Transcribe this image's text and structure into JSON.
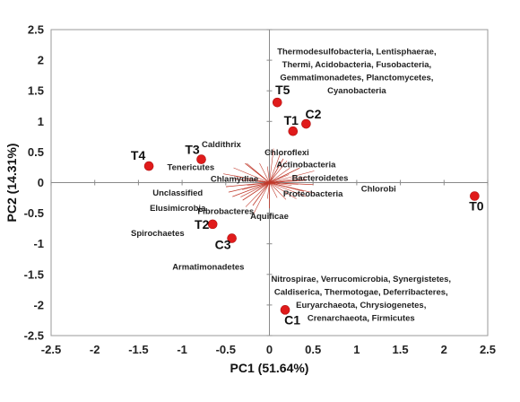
{
  "chart_data": {
    "type": "scatter",
    "title": "",
    "xlabel": "PC1 (51.64%)",
    "ylabel": "PC2 (14.31%)",
    "xlim": [
      -2.5,
      2.5
    ],
    "ylim": [
      -2.5,
      2.5
    ],
    "xticks": [
      "-2.5",
      "-2",
      "-1.5",
      "-1",
      "-0.5",
      "0",
      "0.5",
      "1",
      "1.5",
      "2",
      "2.5"
    ],
    "yticks": [
      "2.5",
      "2",
      "1.5",
      "1",
      "0.5",
      "0",
      "-0.5",
      "-1",
      "-1.5",
      "-2",
      "-2.5"
    ],
    "grid": false,
    "marker_color": "#e01b1b",
    "vector_color": "#c0392b",
    "points": [
      {
        "label": "T0",
        "x": 2.35,
        "y": -0.22
      },
      {
        "label": "T1",
        "x": 0.27,
        "y": 0.84
      },
      {
        "label": "T2",
        "x": -0.65,
        "y": -0.68
      },
      {
        "label": "T3",
        "x": -0.78,
        "y": 0.38
      },
      {
        "label": "T4",
        "x": -1.38,
        "y": 0.27
      },
      {
        "label": "T5",
        "x": 0.09,
        "y": 1.31
      },
      {
        "label": "C1",
        "x": 0.18,
        "y": -2.08
      },
      {
        "label": "C2",
        "x": 0.42,
        "y": 0.96
      },
      {
        "label": "C3",
        "x": -0.43,
        "y": -0.91
      }
    ],
    "variables": [
      {
        "label": "Caldithrix",
        "x": -0.55,
        "y": 0.62
      },
      {
        "label": "Tenericutes",
        "x": -0.9,
        "y": 0.25
      },
      {
        "label": "Chlamydiae",
        "x": -0.4,
        "y": 0.06
      },
      {
        "label": "Unclassified",
        "x": -1.05,
        "y": -0.17
      },
      {
        "label": "Elusimicrobia",
        "x": -1.05,
        "y": -0.42
      },
      {
        "label": "Fibrobacteres",
        "x": -0.5,
        "y": -0.47
      },
      {
        "label": "Spirochaetes",
        "x": -1.28,
        "y": -0.83
      },
      {
        "label": "Armatimonadetes",
        "x": -0.7,
        "y": -1.38
      },
      {
        "label": "Aquificae",
        "x": 0.0,
        "y": -0.55
      },
      {
        "label": "Chloroflexi",
        "x": 0.2,
        "y": 0.49
      },
      {
        "label": "Actinobacteria",
        "x": 0.42,
        "y": 0.29
      },
      {
        "label": "Bacteroidetes",
        "x": 0.58,
        "y": 0.07
      },
      {
        "label": "Proteobacteria",
        "x": 0.5,
        "y": -0.18
      },
      {
        "label": "Chlorobi",
        "x": 1.25,
        "y": -0.1
      }
    ],
    "annotations": [
      {
        "lines": [
          "Thermodesulfobacteria, Lentisphaerae,",
          "Thermi, Acidobacteria,  Fusobacteria,",
          "Gemmatimonadetes, Planctomycetes,",
          "Cyanobacteria"
        ],
        "x": 1.0,
        "y": 2.1
      },
      {
        "lines": [
          "Nitrospirae, Verrucomicrobia, Synergistetes,",
          "Caldiserica, Thermotogae, Deferribacteres,",
          "Euryarchaeota, Chrysiogenetes,",
          "Crenarchaeota, Firmicutes"
        ],
        "x": 1.05,
        "y": -1.62
      }
    ]
  }
}
